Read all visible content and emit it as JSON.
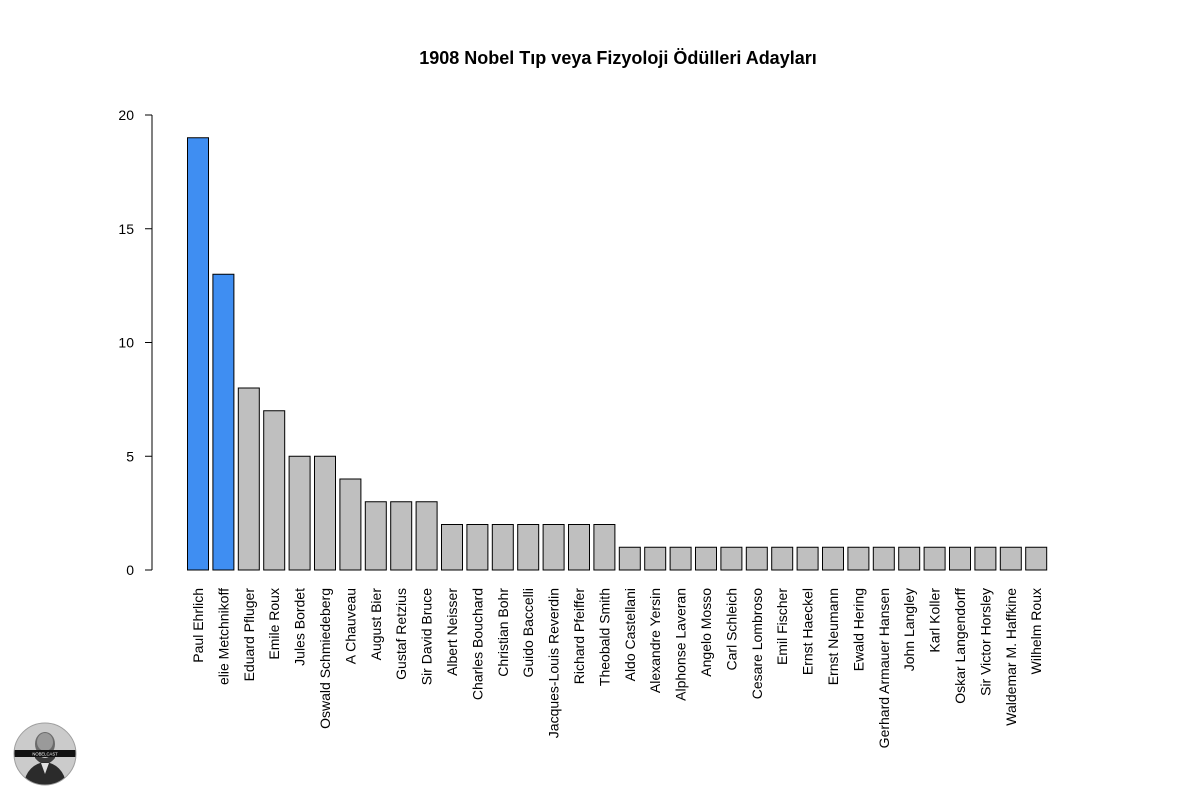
{
  "chart_data": {
    "type": "bar",
    "title": "1908 Nobel Tıp veya Fizyoloji Ödülleri Adayları",
    "xlabel": "",
    "ylabel": "",
    "ylim": [
      0,
      20
    ],
    "yticks": [
      "0",
      "5",
      "10",
      "15",
      "20"
    ],
    "grid": false,
    "categories": [
      "Paul Ehrlich",
      "elie Metchnikoff",
      "Eduard Pfluger",
      "Emile Roux",
      "Jules Bordet",
      "Oswald Schmiedeberg",
      "A Chauveau",
      "August Bier",
      "Gustaf Retzius",
      "Sir David Bruce",
      "Albert Neisser",
      "Charles Bouchard",
      "Christian Bohr",
      "Guido Baccelli",
      "Jacques-Louis Reverdin",
      "Richard Pfeiffer",
      "Theobald Smith",
      "Aldo Castellani",
      "Alexandre Yersin",
      "Alphonse Laveran",
      "Angelo Mosso",
      "Carl Schleich",
      "Cesare Lombroso",
      "Emil Fischer",
      "Ernst Haeckel",
      "Ernst Neumann",
      "Ewald Hering",
      "Gerhard Armauer Hansen",
      "John Langley",
      "Karl Koller",
      "Oskar Langendorff",
      "Sir Victor Horsley",
      "Waldemar M. Haffkine",
      "Wilhelm Roux"
    ],
    "values": [
      19,
      13,
      8,
      7,
      5,
      5,
      4,
      3,
      3,
      3,
      2,
      2,
      2,
      2,
      2,
      2,
      2,
      1,
      1,
      1,
      1,
      1,
      1,
      1,
      1,
      1,
      1,
      1,
      1,
      1,
      1,
      1,
      1,
      1
    ],
    "highlighted": [
      "Paul Ehrlich",
      "elie Metchnikoff"
    ],
    "colors": {
      "highlight": "#3f8ef2",
      "default": "#bfbfbf",
      "border": "#000000"
    }
  },
  "logo": {
    "text": "NOBELCAST",
    "icon": "portrait-logo-icon"
  }
}
